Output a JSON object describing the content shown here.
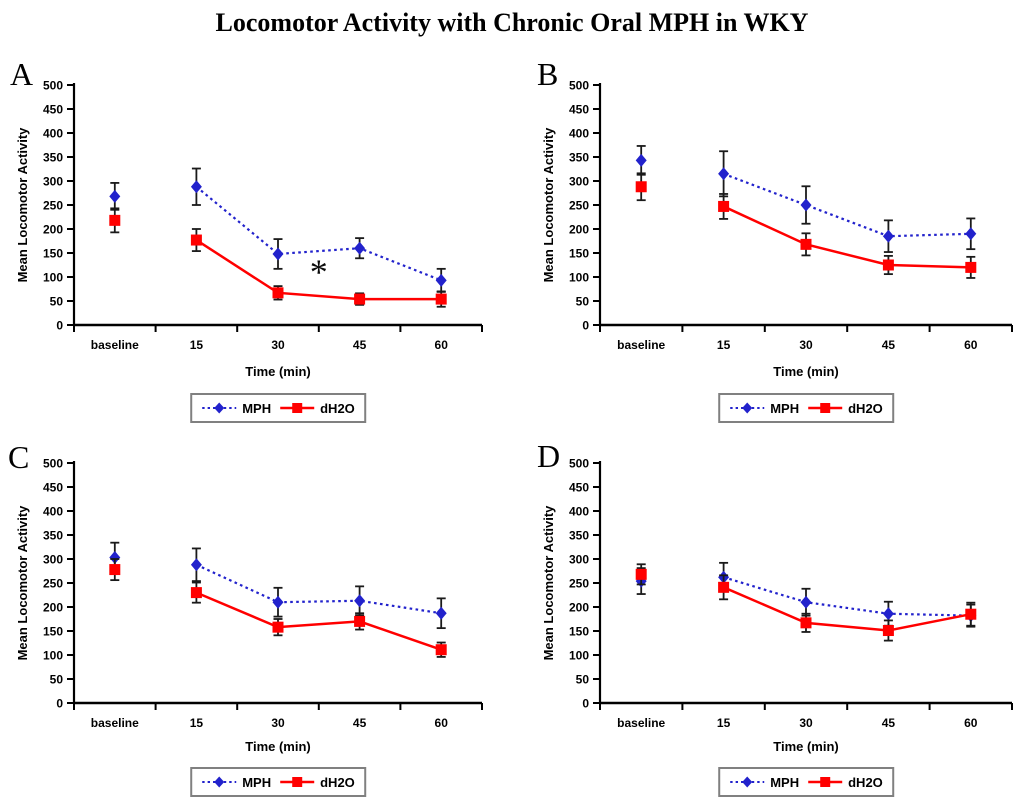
{
  "title": "Locomotor Activity with Chronic Oral MPH in WKY",
  "colors": {
    "mph": "#2222CC",
    "dh2o": "#FF0000",
    "error_bar": "#1A1A1A",
    "axis": "#000000",
    "legend_border": "#808080"
  },
  "chart_data": [
    {
      "panel": "A",
      "type": "line",
      "categories": [
        "baseline",
        "15",
        "30",
        "45",
        "60"
      ],
      "xlabel": "Time (min)",
      "ylabel": "Mean Locomotor Activity",
      "ylim": [
        0,
        500
      ],
      "ytick": 50,
      "gap_after_baseline": true,
      "series": [
        {
          "name": "MPH",
          "color": "#2222CC",
          "marker": "diamond",
          "line_style": "dotted",
          "values": [
            268,
            288,
            148,
            160,
            93
          ],
          "errors": [
            28,
            38,
            31,
            21,
            24
          ]
        },
        {
          "name": "dH2O",
          "color": "#FF0000",
          "marker": "square",
          "line_style": "solid",
          "values": [
            218,
            177,
            67,
            54,
            54
          ],
          "errors": [
            25,
            23,
            14,
            12,
            16
          ]
        }
      ],
      "annotation": {
        "text": "*",
        "between": [
          "30",
          "45"
        ],
        "value": 110
      }
    },
    {
      "panel": "B",
      "type": "line",
      "categories": [
        "baseline",
        "15",
        "30",
        "45",
        "60"
      ],
      "xlabel": "Time (min)",
      "ylabel": "Mean Locomotor Activity",
      "ylim": [
        0,
        500
      ],
      "ytick": 50,
      "gap_after_baseline": true,
      "series": [
        {
          "name": "MPH",
          "color": "#2222CC",
          "marker": "diamond",
          "line_style": "dotted",
          "values": [
            343,
            315,
            250,
            185,
            190
          ],
          "errors": [
            30,
            47,
            39,
            33,
            32
          ]
        },
        {
          "name": "dH2O",
          "color": "#FF0000",
          "marker": "square",
          "line_style": "solid",
          "values": [
            288,
            247,
            168,
            125,
            120
          ],
          "errors": [
            28,
            26,
            23,
            19,
            22
          ]
        }
      ],
      "annotation": null
    },
    {
      "panel": "C",
      "type": "line",
      "categories": [
        "baseline",
        "15",
        "30",
        "45",
        "60"
      ],
      "xlabel": "Time (min)",
      "ylabel": "Mean Locomotor Activity",
      "ylim": [
        0,
        500
      ],
      "ytick": 50,
      "gap_after_baseline": true,
      "series": [
        {
          "name": "MPH",
          "color": "#2222CC",
          "marker": "diamond",
          "line_style": "dotted",
          "values": [
            303,
            288,
            210,
            213,
            187
          ],
          "errors": [
            31,
            34,
            30,
            30,
            31
          ]
        },
        {
          "name": "dH2O",
          "color": "#FF0000",
          "marker": "square",
          "line_style": "solid",
          "values": [
            278,
            230,
            158,
            170,
            111
          ],
          "errors": [
            22,
            21,
            17,
            17,
            15
          ]
        }
      ],
      "annotation": null
    },
    {
      "panel": "D",
      "type": "line",
      "categories": [
        "baseline",
        "15",
        "30",
        "45",
        "60"
      ],
      "xlabel": "Time (min)",
      "ylabel": "Mean Locomotor Activity",
      "ylim": [
        0,
        500
      ],
      "ytick": 50,
      "gap_after_baseline": true,
      "series": [
        {
          "name": "MPH",
          "color": "#2222CC",
          "marker": "diamond",
          "line_style": "dotted",
          "values": [
            254,
            262,
            210,
            186,
            182
          ],
          "errors": [
            27,
            30,
            28,
            25,
            23
          ]
        },
        {
          "name": "dH2O",
          "color": "#FF0000",
          "marker": "square",
          "line_style": "solid",
          "values": [
            268,
            241,
            167,
            151,
            185
          ],
          "errors": [
            21,
            25,
            19,
            21,
            24
          ]
        }
      ],
      "annotation": null
    }
  ]
}
